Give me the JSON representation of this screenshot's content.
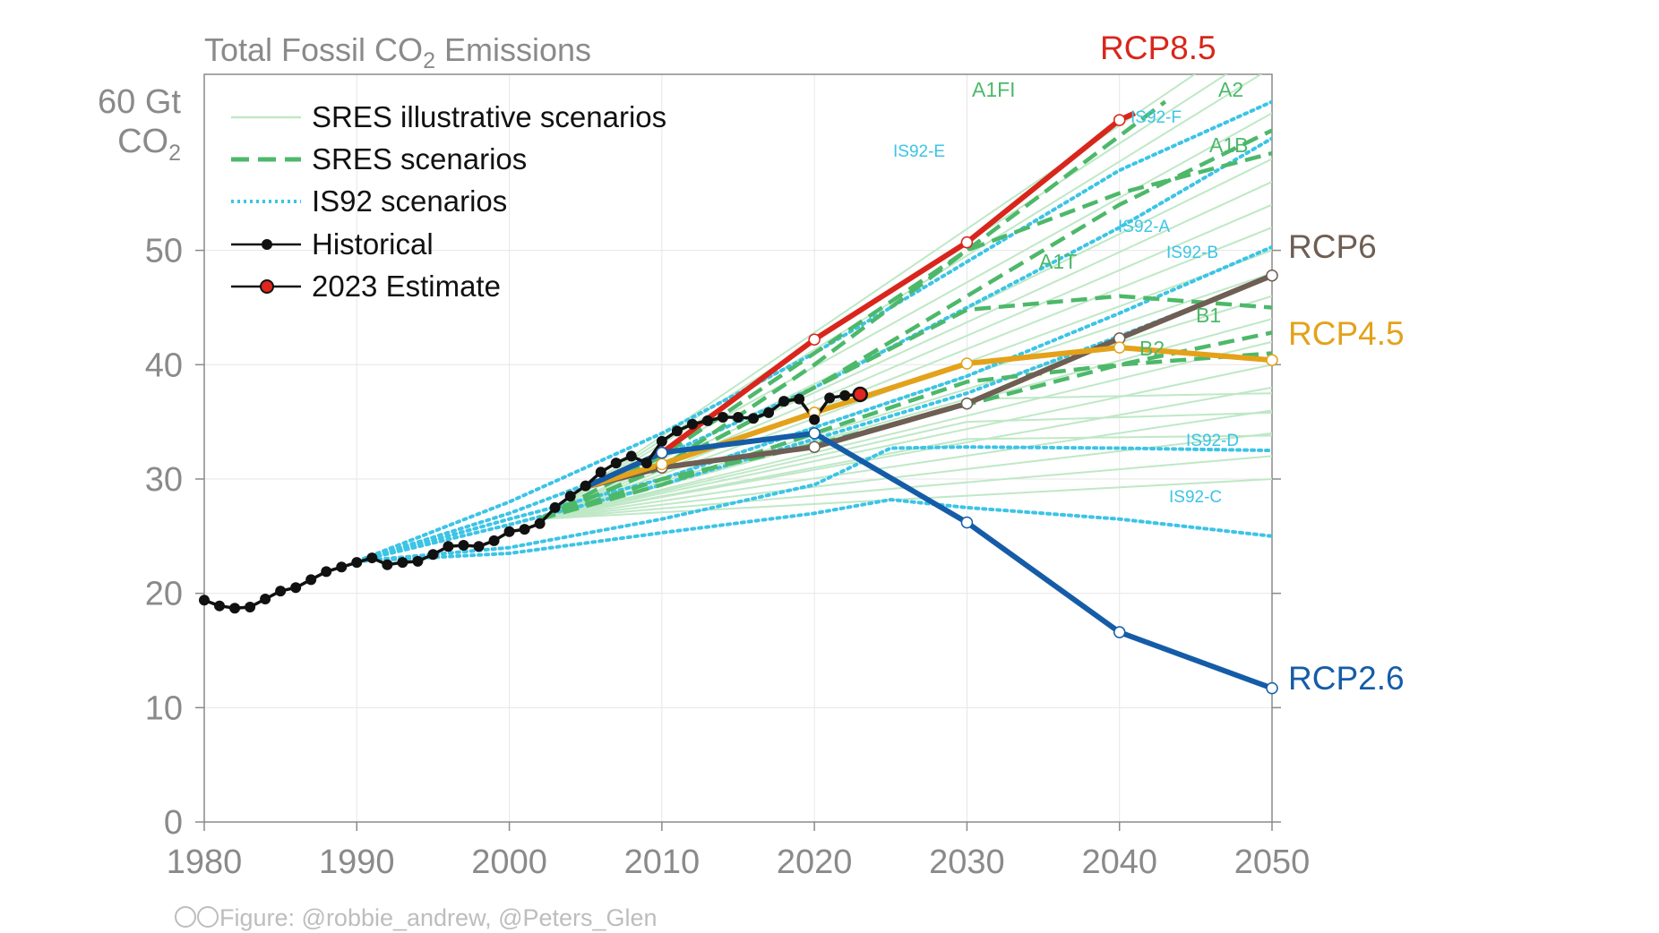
{
  "chart_data": {
    "type": "line",
    "title": "Total Fossil CO2 Emissions",
    "title_main": "Total Fossil CO",
    "title_sub": "2",
    "title_end": " Emissions",
    "ylabel_top": "60 Gt",
    "ylabel_unit": "CO",
    "ylabel_unit_sub": "2",
    "xlim": [
      1980,
      2050
    ],
    "ylim": [
      0,
      60
    ],
    "xticks": [
      "1980",
      "1990",
      "2000",
      "2010",
      "2020",
      "2030",
      "2040",
      "2050"
    ],
    "yticks": [
      "0",
      "10",
      "20",
      "30",
      "40",
      "50"
    ],
    "legend": {
      "position": "top-left",
      "entries": [
        {
          "label": "SRES illustrative scenarios",
          "style": "thin-light-green"
        },
        {
          "label": "SRES scenarios",
          "style": "dashed-green"
        },
        {
          "label": "IS92 scenarios",
          "style": "dotted-cyan"
        },
        {
          "label": "Historical",
          "style": "black-dots"
        },
        {
          "label": "2023 Estimate",
          "style": "red-dot"
        }
      ]
    },
    "colors": {
      "sres_illustrative": "#bfe8c6",
      "sres": "#4db86a",
      "is92": "#3cc4e6",
      "historical": "#111111",
      "estimate": "#e0261e",
      "rcp85": "#d9261c",
      "rcp6": "#6e5e53",
      "rcp45": "#e3a21a",
      "rcp26": "#155ca8",
      "axis": "#8a8a8a",
      "grid": "#e6e6e6"
    },
    "historical": {
      "x": [
        1980,
        1981,
        1982,
        1983,
        1984,
        1985,
        1986,
        1987,
        1988,
        1989,
        1990,
        1991,
        1992,
        1993,
        1994,
        1995,
        1996,
        1997,
        1998,
        1999,
        2000,
        2001,
        2002,
        2003,
        2004,
        2005,
        2006,
        2007,
        2008,
        2009,
        2010,
        2011,
        2012,
        2013,
        2014,
        2015,
        2016,
        2017,
        2018,
        2019,
        2020,
        2021,
        2022
      ],
      "y": [
        19.4,
        18.9,
        18.7,
        18.8,
        19.5,
        20.2,
        20.5,
        21.2,
        21.9,
        22.3,
        22.7,
        23.1,
        22.5,
        22.7,
        22.8,
        23.4,
        24.1,
        24.2,
        24.1,
        24.6,
        25.4,
        25.6,
        26.1,
        27.5,
        28.5,
        29.4,
        30.6,
        31.4,
        32.0,
        31.4,
        33.3,
        34.2,
        34.8,
        35.1,
        35.4,
        35.4,
        35.3,
        35.8,
        36.8,
        37.0,
        35.2,
        37.1,
        37.3
      ]
    },
    "estimate": {
      "x": 2023,
      "y": 37.4
    },
    "rcp": [
      {
        "name": "RCP8.5",
        "x": [
          2005,
          2010,
          2020,
          2030,
          2040,
          2041
        ],
        "y": [
          29.3,
          32.3,
          42.2,
          50.7,
          61.4,
          62.0
        ]
      },
      {
        "name": "RCP6",
        "x": [
          2005,
          2010,
          2020,
          2030,
          2040,
          2050
        ],
        "y": [
          29.3,
          31.0,
          32.8,
          36.6,
          42.3,
          47.8
        ]
      },
      {
        "name": "RCP4.5",
        "x": [
          2005,
          2010,
          2020,
          2030,
          2040,
          2050
        ],
        "y": [
          29.3,
          31.3,
          35.8,
          40.1,
          41.5,
          40.4
        ]
      },
      {
        "name": "RCP2.6",
        "x": [
          2005,
          2010,
          2020,
          2030,
          2040,
          2050
        ],
        "y": [
          29.3,
          32.3,
          34.0,
          26.2,
          16.6,
          11.7
        ]
      }
    ],
    "sres": [
      {
        "name": "A1FI",
        "x": [
          2002,
          2010,
          2020,
          2030,
          2040,
          2043
        ],
        "y": [
          26.5,
          31.0,
          40.0,
          50.0,
          60.0,
          63.0
        ]
      },
      {
        "name": "A2",
        "x": [
          2002,
          2010,
          2020,
          2030,
          2040,
          2050
        ],
        "y": [
          26.5,
          31.0,
          38.0,
          46.0,
          54.0,
          60.5
        ]
      },
      {
        "name": "A1B",
        "x": [
          2002,
          2010,
          2020,
          2030,
          2040,
          2050
        ],
        "y": [
          26.5,
          32.0,
          41.0,
          50.0,
          55.0,
          58.5
        ]
      },
      {
        "name": "A1T",
        "x": [
          2002,
          2010,
          2020,
          2030,
          2040,
          2050
        ],
        "y": [
          26.5,
          31.0,
          38.0,
          44.8,
          46.0,
          45.0
        ]
      },
      {
        "name": "B1",
        "x": [
          2002,
          2010,
          2020,
          2030,
          2040,
          2050
        ],
        "y": [
          26.5,
          29.5,
          34.0,
          38.5,
          40.0,
          41.0
        ]
      },
      {
        "name": "B2",
        "x": [
          2002,
          2010,
          2020,
          2030,
          2040,
          2050
        ],
        "y": [
          26.5,
          30.0,
          33.0,
          36.5,
          40.0,
          42.8
        ]
      }
    ],
    "is92": [
      {
        "name": "IS92-E",
        "x": [
          1990,
          2000,
          2010,
          2020,
          2030,
          2040,
          2050
        ],
        "y": [
          22.8,
          28.0,
          34.0,
          41.0,
          49.0,
          57.0,
          63.0
        ]
      },
      {
        "name": "IS92-F",
        "x": [
          1990,
          2000,
          2010,
          2020,
          2030,
          2040,
          2050
        ],
        "y": [
          22.8,
          27.0,
          32.0,
          38.0,
          45.0,
          52.0,
          59.8
        ]
      },
      {
        "name": "IS92-A",
        "x": [
          1990,
          2000,
          2010,
          2020,
          2030,
          2040,
          2050
        ],
        "y": [
          22.8,
          26.5,
          30.0,
          34.5,
          39.0,
          44.5,
          50.3
        ]
      },
      {
        "name": "IS92-B",
        "x": [
          1990,
          2000,
          2010,
          2020,
          2030,
          2040,
          2050
        ],
        "y": [
          22.8,
          26.0,
          29.5,
          33.5,
          37.5,
          42.5,
          47.7
        ]
      },
      {
        "name": "IS92-D",
        "x": [
          1990,
          2000,
          2010,
          2020,
          2025,
          2030,
          2040,
          2050
        ],
        "y": [
          22.8,
          24.0,
          26.5,
          29.5,
          32.7,
          32.8,
          32.7,
          32.5
        ]
      },
      {
        "name": "IS92-C",
        "x": [
          1990,
          2000,
          2010,
          2020,
          2025,
          2030,
          2040,
          2050
        ],
        "y": [
          22.8,
          23.5,
          25.3,
          27.0,
          28.2,
          27.5,
          26.5,
          25.0
        ]
      }
    ],
    "sres_illustrative": [
      {
        "x": [
          2002,
          2050
        ],
        "y": [
          26.5,
          70
        ]
      },
      {
        "x": [
          2002,
          2050
        ],
        "y": [
          26.5,
          68
        ]
      },
      {
        "x": [
          2002,
          2050
        ],
        "y": [
          26.5,
          66
        ]
      },
      {
        "x": [
          2002,
          2050
        ],
        "y": [
          26.5,
          62
        ]
      },
      {
        "x": [
          2002,
          2050
        ],
        "y": [
          26.5,
          58
        ]
      },
      {
        "x": [
          2002,
          2050
        ],
        "y": [
          26.5,
          56
        ]
      },
      {
        "x": [
          2002,
          2050
        ],
        "y": [
          26.5,
          54
        ]
      },
      {
        "x": [
          2002,
          2050
        ],
        "y": [
          26.5,
          52
        ]
      },
      {
        "x": [
          2002,
          2050
        ],
        "y": [
          26.5,
          50
        ]
      },
      {
        "x": [
          2002,
          2050
        ],
        "y": [
          26.5,
          48
        ]
      },
      {
        "x": [
          2002,
          2050
        ],
        "y": [
          26.5,
          46
        ]
      },
      {
        "x": [
          2002,
          2050
        ],
        "y": [
          26.5,
          44
        ]
      },
      {
        "x": [
          2002,
          2050
        ],
        "y": [
          26.5,
          42
        ]
      },
      {
        "x": [
          2002,
          2050
        ],
        "y": [
          26.5,
          40
        ]
      },
      {
        "x": [
          2002,
          2050
        ],
        "y": [
          26.5,
          38
        ]
      },
      {
        "x": [
          2002,
          2050
        ],
        "y": [
          26.5,
          36
        ]
      },
      {
        "x": [
          2002,
          2050
        ],
        "y": [
          26.5,
          34
        ]
      },
      {
        "x": [
          2002,
          2050
        ],
        "y": [
          26.5,
          32
        ]
      },
      {
        "x": [
          2002,
          2050
        ],
        "y": [
          26.5,
          30
        ]
      },
      {
        "x": [
          2002,
          2030,
          2050
        ],
        "y": [
          26.5,
          37,
          37.5
        ]
      },
      {
        "x": [
          2002,
          2030,
          2050
        ],
        "y": [
          26.5,
          35,
          35.8
        ]
      },
      {
        "x": [
          2002,
          2030,
          2050
        ],
        "y": [
          26.5,
          33.5,
          33.8
        ]
      }
    ]
  },
  "credit": "Figure: @robbie_andrew, @Peters_Glen",
  "credit_icons": "cc i"
}
